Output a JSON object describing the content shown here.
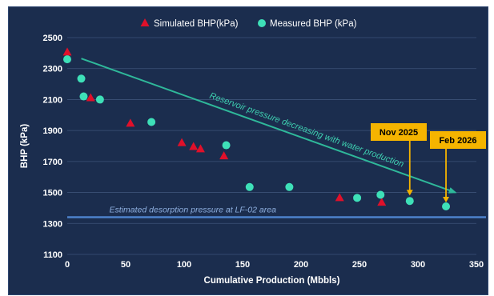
{
  "chart_data": {
    "type": "scatter",
    "xlabel": "Cumulative Production (Mbbls)",
    "ylabel": "BHP (kPa)",
    "xlim": [
      0,
      350
    ],
    "ylim": [
      1100,
      2500
    ],
    "x_ticks": [
      0,
      50,
      100,
      150,
      200,
      250,
      300,
      350
    ],
    "y_ticks": [
      1100,
      1300,
      1500,
      1700,
      1900,
      2100,
      2300,
      2500
    ],
    "grid": "horizontal",
    "legend_position": "top",
    "series": [
      {
        "name": "Simulated BHP(kPa)",
        "marker": "triangle",
        "color": "#e0102a",
        "points": [
          [
            0,
            2405
          ],
          [
            20,
            2110
          ],
          [
            54,
            1945
          ],
          [
            98,
            1820
          ],
          [
            108,
            1795
          ],
          [
            114,
            1780
          ],
          [
            134,
            1735
          ],
          [
            233,
            1465
          ],
          [
            269,
            1435
          ]
        ]
      },
      {
        "name": "Measured BHP (kPa)",
        "marker": "circle",
        "color": "#3ee0b8",
        "points": [
          [
            0,
            2360
          ],
          [
            12,
            2235
          ],
          [
            14,
            2120
          ],
          [
            28,
            2100
          ],
          [
            72,
            1955
          ],
          [
            136,
            1805
          ],
          [
            156,
            1535
          ],
          [
            190,
            1535
          ],
          [
            248,
            1465
          ],
          [
            268,
            1485
          ],
          [
            293,
            1445
          ],
          [
            324,
            1410
          ]
        ]
      }
    ],
    "trend_arrow": {
      "label": "Reservoir pressure decreasing with water production",
      "from": [
        12,
        2365
      ],
      "to": [
        332,
        1500
      ],
      "color": "#2fb89a"
    },
    "desorption_line": {
      "label": "Estimated desorption pressure at LF-02 area",
      "y": 1340,
      "color": "#4d82cc"
    },
    "callouts": [
      {
        "label": "Nov 2025",
        "x": 293,
        "y_value": 1465,
        "color": "#f5b400"
      },
      {
        "label": "Feb 2026",
        "x": 324,
        "y_value": 1420,
        "color": "#f5b400"
      }
    ]
  }
}
